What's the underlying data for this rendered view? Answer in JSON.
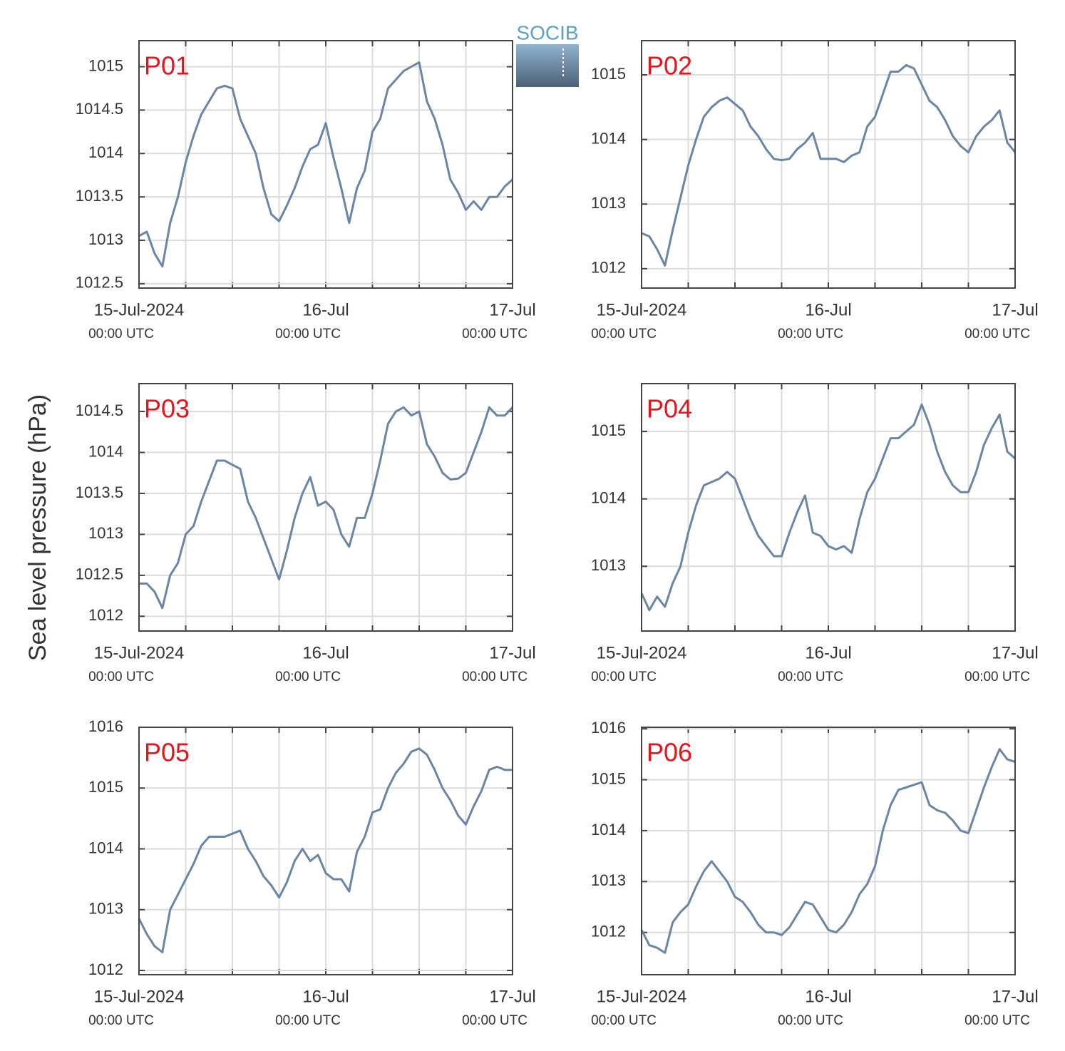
{
  "ylabel": "Sea level pressure (hPa)",
  "logo": "SOCIB",
  "chart_data": [
    {
      "type": "line",
      "title": "P01",
      "color": "#6a86a6",
      "grid": true,
      "x": [
        0,
        1,
        2,
        3,
        4,
        5,
        6,
        7,
        8,
        9,
        10,
        11,
        12,
        13,
        14,
        15,
        16,
        17,
        18,
        19,
        20,
        21,
        22,
        23,
        24,
        25,
        26,
        27,
        28,
        29,
        30,
        31,
        32,
        33,
        34,
        35,
        36,
        37,
        38,
        39,
        40,
        41,
        42,
        43,
        44,
        45,
        46,
        47,
        48
      ],
      "values": [
        1013.05,
        1013.1,
        1012.85,
        1012.7,
        1013.2,
        1013.5,
        1013.9,
        1014.2,
        1014.45,
        1014.6,
        1014.75,
        1014.78,
        1014.75,
        1014.4,
        1014.2,
        1014.0,
        1013.6,
        1013.3,
        1013.22,
        1013.4,
        1013.6,
        1013.85,
        1014.05,
        1014.1,
        1014.35,
        1013.95,
        1013.6,
        1013.2,
        1013.6,
        1013.8,
        1014.25,
        1014.4,
        1014.75,
        1014.85,
        1014.95,
        1015.0,
        1015.05,
        1014.6,
        1014.4,
        1014.1,
        1013.7,
        1013.55,
        1013.35,
        1013.45,
        1013.35,
        1013.5,
        1013.5,
        1013.62,
        1013.7
      ],
      "xlim": [
        0,
        48
      ],
      "xticks": [
        {
          "value": 0,
          "label": [
            "15-Jul-2024",
            "00:00 UTC"
          ]
        },
        {
          "value": 24,
          "label": [
            "16-Jul",
            "00:00 UTC"
          ]
        },
        {
          "value": 48,
          "label": [
            "17-Jul",
            "00:00 UTC"
          ]
        }
      ],
      "xminorticks": [
        6,
        12,
        18,
        30,
        36,
        42
      ],
      "ylim": [
        1012.45,
        1015.3
      ],
      "yticks": [
        1012.5,
        1013,
        1013.5,
        1014,
        1014.5,
        1015
      ]
    },
    {
      "type": "line",
      "title": "P02",
      "color": "#6a86a6",
      "grid": true,
      "x": [
        0,
        1,
        2,
        3,
        4,
        5,
        6,
        7,
        8,
        9,
        10,
        11,
        12,
        13,
        14,
        15,
        16,
        17,
        18,
        19,
        20,
        21,
        22,
        23,
        24,
        25,
        26,
        27,
        28,
        29,
        30,
        31,
        32,
        33,
        34,
        35,
        36,
        37,
        38,
        39,
        40,
        41,
        42,
        43,
        44,
        45,
        46,
        47,
        48
      ],
      "values": [
        1012.55,
        1012.5,
        1012.3,
        1012.05,
        1012.6,
        1013.1,
        1013.6,
        1014.0,
        1014.35,
        1014.5,
        1014.6,
        1014.65,
        1014.55,
        1014.45,
        1014.2,
        1014.05,
        1013.85,
        1013.7,
        1013.68,
        1013.7,
        1013.85,
        1013.95,
        1014.1,
        1013.7,
        1013.7,
        1013.7,
        1013.65,
        1013.75,
        1013.8,
        1014.2,
        1014.35,
        1014.7,
        1015.05,
        1015.05,
        1015.15,
        1015.1,
        1014.85,
        1014.6,
        1014.5,
        1014.3,
        1014.05,
        1013.9,
        1013.8,
        1014.05,
        1014.2,
        1014.3,
        1014.45,
        1013.95,
        1013.8
      ],
      "xlim": [
        0,
        48
      ],
      "xticks": [
        {
          "value": 0,
          "label": [
            "15-Jul-2024",
            "00:00 UTC"
          ]
        },
        {
          "value": 24,
          "label": [
            "16-Jul",
            "00:00 UTC"
          ]
        },
        {
          "value": 48,
          "label": [
            "17-Jul",
            "00:00 UTC"
          ]
        }
      ],
      "xminorticks": [
        6,
        12,
        18,
        30,
        36,
        42
      ],
      "ylim": [
        1011.7,
        1015.53
      ],
      "yticks": [
        1012,
        1013,
        1014,
        1015
      ]
    },
    {
      "type": "line",
      "title": "P03",
      "color": "#6a86a6",
      "grid": true,
      "x": [
        0,
        1,
        2,
        3,
        4,
        5,
        6,
        7,
        8,
        9,
        10,
        11,
        12,
        13,
        14,
        15,
        16,
        17,
        18,
        19,
        20,
        21,
        22,
        23,
        24,
        25,
        26,
        27,
        28,
        29,
        30,
        31,
        32,
        33,
        34,
        35,
        36,
        37,
        38,
        39,
        40,
        41,
        42,
        43,
        44,
        45,
        46,
        47,
        48
      ],
      "values": [
        1012.4,
        1012.4,
        1012.3,
        1012.1,
        1012.5,
        1012.65,
        1013.0,
        1013.1,
        1013.4,
        1013.65,
        1013.9,
        1013.9,
        1013.85,
        1013.8,
        1013.4,
        1013.2,
        1012.95,
        1012.7,
        1012.45,
        1012.8,
        1013.2,
        1013.5,
        1013.7,
        1013.35,
        1013.4,
        1013.3,
        1013.0,
        1012.85,
        1013.2,
        1013.2,
        1013.5,
        1013.9,
        1014.35,
        1014.5,
        1014.55,
        1014.45,
        1014.5,
        1014.1,
        1013.95,
        1013.75,
        1013.67,
        1013.68,
        1013.75,
        1014.0,
        1014.25,
        1014.55,
        1014.45,
        1014.45,
        1014.55
      ],
      "xlim": [
        0,
        48
      ],
      "xticks": [
        {
          "value": 0,
          "label": [
            "15-Jul-2024",
            "00:00 UTC"
          ]
        },
        {
          "value": 24,
          "label": [
            "16-Jul",
            "00:00 UTC"
          ]
        },
        {
          "value": 48,
          "label": [
            "17-Jul",
            "00:00 UTC"
          ]
        }
      ],
      "xminorticks": [
        6,
        12,
        18,
        30,
        36,
        42
      ],
      "ylim": [
        1011.82,
        1014.84
      ],
      "yticks": [
        1012,
        1012.5,
        1013,
        1013.5,
        1014,
        1014.5
      ]
    },
    {
      "type": "line",
      "title": "P04",
      "color": "#6a86a6",
      "grid": true,
      "x": [
        0,
        1,
        2,
        3,
        4,
        5,
        6,
        7,
        8,
        9,
        10,
        11,
        12,
        13,
        14,
        15,
        16,
        17,
        18,
        19,
        20,
        21,
        22,
        23,
        24,
        25,
        26,
        27,
        28,
        29,
        30,
        31,
        32,
        33,
        34,
        35,
        36,
        37,
        38,
        39,
        40,
        41,
        42,
        43,
        44,
        45,
        46,
        47,
        48
      ],
      "values": [
        1012.6,
        1012.35,
        1012.55,
        1012.4,
        1012.75,
        1013.0,
        1013.5,
        1013.9,
        1014.2,
        1014.25,
        1014.3,
        1014.4,
        1014.3,
        1014.0,
        1013.7,
        1013.45,
        1013.3,
        1013.15,
        1013.15,
        1013.5,
        1013.8,
        1014.05,
        1013.5,
        1013.45,
        1013.3,
        1013.25,
        1013.3,
        1013.2,
        1013.7,
        1014.1,
        1014.3,
        1014.6,
        1014.9,
        1014.9,
        1015.0,
        1015.1,
        1015.4,
        1015.1,
        1014.7,
        1014.4,
        1014.2,
        1014.1,
        1014.1,
        1014.4,
        1014.8,
        1015.05,
        1015.25,
        1014.7,
        1014.6
      ],
      "xlim": [
        0,
        48
      ],
      "xticks": [
        {
          "value": 0,
          "label": [
            "15-Jul-2024",
            "00:00 UTC"
          ]
        },
        {
          "value": 24,
          "label": [
            "16-Jul",
            "00:00 UTC"
          ]
        },
        {
          "value": 48,
          "label": [
            "17-Jul",
            "00:00 UTC"
          ]
        }
      ],
      "xminorticks": [
        6,
        12,
        18,
        30,
        36,
        42
      ],
      "ylim": [
        1012.04,
        1015.71
      ],
      "yticks": [
        1013,
        1014,
        1015
      ]
    },
    {
      "type": "line",
      "title": "P05",
      "color": "#6a86a6",
      "grid": true,
      "x": [
        0,
        1,
        2,
        3,
        4,
        5,
        6,
        7,
        8,
        9,
        10,
        11,
        12,
        13,
        14,
        15,
        16,
        17,
        18,
        19,
        20,
        21,
        22,
        23,
        24,
        25,
        26,
        27,
        28,
        29,
        30,
        31,
        32,
        33,
        34,
        35,
        36,
        37,
        38,
        39,
        40,
        41,
        42,
        43,
        44,
        45,
        46,
        47,
        48
      ],
      "values": [
        1012.85,
        1012.6,
        1012.4,
        1012.3,
        1013.0,
        1013.25,
        1013.5,
        1013.75,
        1014.05,
        1014.2,
        1014.2,
        1014.2,
        1014.25,
        1014.3,
        1014.0,
        1013.8,
        1013.55,
        1013.4,
        1013.2,
        1013.45,
        1013.8,
        1014.0,
        1013.8,
        1013.9,
        1013.6,
        1013.5,
        1013.5,
        1013.3,
        1013.95,
        1014.2,
        1014.6,
        1014.65,
        1015.0,
        1015.25,
        1015.4,
        1015.6,
        1015.65,
        1015.55,
        1015.3,
        1015.0,
        1014.8,
        1014.55,
        1014.4,
        1014.7,
        1014.95,
        1015.3,
        1015.35,
        1015.3,
        1015.3
      ],
      "xlim": [
        0,
        48
      ],
      "xticks": [
        {
          "value": 0,
          "label": [
            "15-Jul-2024",
            "00:00 UTC"
          ]
        },
        {
          "value": 24,
          "label": [
            "16-Jul",
            "00:00 UTC"
          ]
        },
        {
          "value": 48,
          "label": [
            "17-Jul",
            "00:00 UTC"
          ]
        }
      ],
      "xminorticks": [
        6,
        12,
        18,
        30,
        36,
        42
      ],
      "ylim": [
        1011.93,
        1016
      ],
      "yticks": [
        1012,
        1013,
        1014,
        1015,
        1016
      ]
    },
    {
      "type": "line",
      "title": "P06",
      "color": "#6a86a6",
      "grid": true,
      "x": [
        0,
        1,
        2,
        3,
        4,
        5,
        6,
        7,
        8,
        9,
        10,
        11,
        12,
        13,
        14,
        15,
        16,
        17,
        18,
        19,
        20,
        21,
        22,
        23,
        24,
        25,
        26,
        27,
        28,
        29,
        30,
        31,
        32,
        33,
        34,
        35,
        36,
        37,
        38,
        39,
        40,
        41,
        42,
        43,
        44,
        45,
        46,
        47,
        48
      ],
      "values": [
        1012.05,
        1011.75,
        1011.7,
        1011.6,
        1012.2,
        1012.4,
        1012.55,
        1012.9,
        1013.2,
        1013.4,
        1013.2,
        1013.0,
        1012.7,
        1012.6,
        1012.4,
        1012.15,
        1012.0,
        1012.0,
        1011.95,
        1012.1,
        1012.35,
        1012.6,
        1012.55,
        1012.3,
        1012.05,
        1012.0,
        1012.15,
        1012.4,
        1012.75,
        1012.95,
        1013.3,
        1014.0,
        1014.5,
        1014.8,
        1014.85,
        1014.9,
        1014.95,
        1014.5,
        1014.4,
        1014.35,
        1014.2,
        1014.0,
        1013.95,
        1014.4,
        1014.85,
        1015.25,
        1015.6,
        1015.4,
        1015.35
      ],
      "xlim": [
        0,
        48
      ],
      "xticks": [
        {
          "value": 0,
          "label": [
            "15-Jul-2024",
            "00:00 UTC"
          ]
        },
        {
          "value": 24,
          "label": [
            "16-Jul",
            "00:00 UTC"
          ]
        },
        {
          "value": 48,
          "label": [
            "17-Jul",
            "00:00 UTC"
          ]
        }
      ],
      "xminorticks": [
        6,
        12,
        18,
        30,
        36,
        42
      ],
      "ylim": [
        1011.17,
        1016.03
      ],
      "yticks": [
        1012,
        1013,
        1014,
        1015,
        1016
      ]
    }
  ]
}
